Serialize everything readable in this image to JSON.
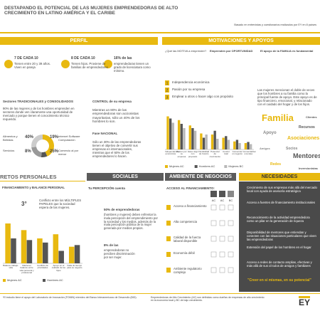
{
  "header": {
    "title": "DESTAPANDO EL POTENCIAL DE LAS MUJERES EMPRENDEDORAS DE ALTO CRECIMIENTO EN LATINO AMÉRICA Y EL CARIBE",
    "subtitle": "Basado en entrevistas y cuestionarios realizados por EY en 8 países"
  },
  "perfil": {
    "heading": "PERFIL",
    "stats": [
      {
        "head": "7 DE CADA 10",
        "text": "Tienen entre 20 y 39 años. Viven en pareja"
      },
      {
        "head": "8 DE CADA 10",
        "text": "Tienen hijos. Proviene de familias de emprendedores"
      },
      {
        "head": "16% de las",
        "text": "emprendedoras tienen un grado de licenciatura como mínimo."
      }
    ],
    "sectores_heading": "Sectores TRADICIONALES y CONSOLIDADOS",
    "sectores_text": "90% de las mujeres y de los hombres emprenden en sectores donde ven claramente una oportunidad de mercado y porque tienen el conocimiento técnico requerido.",
    "sectors": [
      {
        "label": "Alimentos y Bebidas",
        "value": 40,
        "value_label": "40%"
      },
      {
        "label": "Servicios",
        "value": 8,
        "value_label": "8%"
      },
      {
        "label": "Internet Software Computación",
        "value": 19,
        "value_label": "19%"
      },
      {
        "label": "Comercio al por menor",
        "value": 25,
        "value_label": "25%"
      }
    ],
    "control_heading": "CONTROL de su empresa",
    "control_text": "Mientras un 80% de las emprendedoras son accionistas mayoritarias, sólo un 40% de los hombres lo son.",
    "fase_heading": "Fase NACIONAL",
    "fase_text": "Sólo un 30% de las emprendedoras tienen el objetivo de convertir sus empresas en internacionales, mientras que el 60% de los emprendedores lo hacen."
  },
  "motivaciones": {
    "heading": "MOTIVACIONES Y APOYOS",
    "q1": "¿Qué las MOTIVA a emprender?",
    "q2": "Emprenden por OPORTUNIDAD",
    "q3": "El apoyo de la FAMILIA es fundamental",
    "list": [
      "Independencia económica",
      "Pasión por su empresa",
      "Emplear a otros o hacer algo con propósito"
    ],
    "apoyo_text": "Las mujeres mencionan el doble de veces que los hombres a su familia como la principal fuente de apoyo. Este apoyo es de tipo financiero, emocional, y relacionado con el cuidado del hogar y de los hijos.",
    "chart": {
      "type": "bar",
      "categories": [
        "Independencia económica",
        "Pasión por su empresa",
        "Hacer algo con propósito",
        "Flexibilidad de horario",
        "Potencial de crecimiento",
        "Control total",
        "Comenzar un negocio",
        "Comercializar una idea"
      ],
      "ylim": [
        0,
        80
      ],
      "series": [
        {
          "name": "Mujeres AC",
          "color": "#e8b910",
          "values": [
            62,
            55,
            45,
            30,
            28,
            22,
            15,
            12
          ]
        },
        {
          "name": "Hombres AC",
          "color": "#555555",
          "values": [
            58,
            48,
            40,
            22,
            35,
            25,
            18,
            14
          ]
        },
        {
          "name": "Mujeres BC",
          "color": "#b8b8b8",
          "values": [
            50,
            40,
            35,
            28,
            20,
            18,
            12,
            10
          ]
        }
      ]
    },
    "cloud": [
      "Familia",
      "Mentores",
      "Asociaciones",
      "Apoyo",
      "Recursos",
      "Redes",
      "Socios",
      "Clientes",
      "Amigos",
      "Inversionistas"
    ]
  },
  "retos": {
    "heading": "RETOS  PERSONALES",
    "sub_heading": "FINANCIAMIENTO y BALANCE PERSONAL",
    "rank": "3°",
    "text": "Conflicto entre los MÚLTIPLES PAPELES que la sociedad espera de las mujeres.",
    "chart": {
      "type": "bar",
      "categories": [
        "Balance trabajo-vida",
        "Mantener balance entre vida personal y profesional",
        "Conflicto de prioridades",
        "Apoyo en el cuidado de los hijos",
        "Falta de tiempo para su negocio"
      ],
      "ylim": [
        0,
        60
      ],
      "series": [
        {
          "name": "Mujeres AC",
          "color": "#e8b910",
          "values": [
            48,
            40,
            30,
            35,
            20
          ]
        },
        {
          "name": "Hombres AC",
          "color": "#555555",
          "values": [
            30,
            28,
            25,
            15,
            22
          ]
        }
      ]
    }
  },
  "sociales": {
    "heading": "SOCIALES",
    "sub_heading": "Tu PERCEPCIÓN cuenta",
    "s1": "50% de emprendedoras",
    "s1_text": "(hombres y mujeres) deben enfrentar la mala percepción del emprendimiento por la sociedad y los medios, además de la mala percepción pública de la mujer generada por medios propios.",
    "s2": "8% de las",
    "s2_text": "emprendedoras no perciben discriminación por ser mujer."
  },
  "ambiente": {
    "heading": "AMBIENTE DE NEGOCIOS",
    "sub_heading": "ACCESO AL FINANCIAMIENTO:",
    "cols": [
      "AC",
      "AC",
      "BC"
    ],
    "items": [
      "Acceso a financiamiento",
      "Alta competencia",
      "Calidad de la fuerza laboral disponible",
      "Economía débil",
      "Ambiente regulatorio complejo"
    ]
  },
  "necesidades": {
    "heading": "NECESIDADES",
    "items": [
      "Crecimiento de sus empresas más allá del mercado local con ayuda de asesoría estratégica",
      "Acceso a fuentes de financiamiento institucionales",
      "Reconocimiento de la actividad emprendedora como un pilar en la generación de riqueza",
      "Disponibilidad de mentores que entiendan y conecten con las situaciones particulares que viven las emprendedoras",
      "Extensión del papel de los hombres en el hogar",
      "Acceso a redes de contacto amplias, efectivas y más allá de sus círculos de amigos y familiares"
    ],
    "quote": "\"Creer en sí mismas, en su potencial\""
  },
  "footer": {
    "note1": "*El estudio tiene el apoyo del Laboratorio de Innovación (FOMIN) miembro del Banco Interamericano de Desarrollo (BID).",
    "note2": "Emprendedoras de Alto Crecimiento (AC) son definidas como dueñas de empresas de alto crecimiento en la economía local y BC de bajo crecimiento.",
    "brand": "EY"
  }
}
